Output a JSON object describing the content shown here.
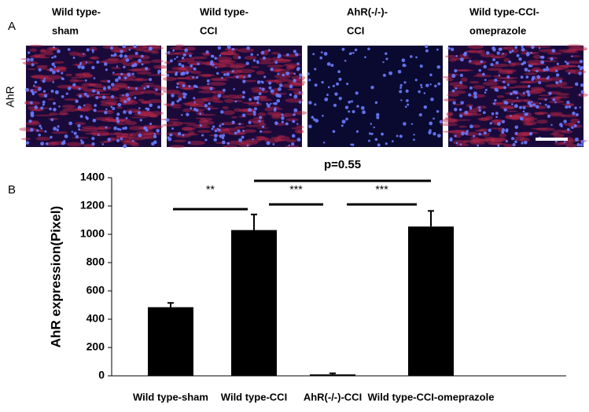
{
  "panel_a": {
    "label": "A",
    "row_label": "AhR",
    "column_labels": [
      [
        "Wild type-",
        "sham"
      ],
      [
        "Wild type-",
        "CCI"
      ],
      [
        "AhR(-/-)-",
        "CCI"
      ],
      [
        "Wild type-CCI-",
        "omeprazole"
      ]
    ]
  },
  "chart_data": {
    "type": "bar",
    "panel_label": "B",
    "y_label": "AhR expression(Pixel)",
    "categories": [
      "Wild type-sham",
      "Wild  type-CCI",
      "AhR(-/-)-CCI",
      "Wild type-CCI-omeprazole"
    ],
    "values": [
      485,
      1030,
      10,
      1055
    ],
    "errors": [
      30,
      110,
      8,
      110
    ],
    "color": "#000000",
    "ylim": [
      0,
      1400
    ],
    "yticks": [
      0,
      200,
      400,
      600,
      800,
      1000,
      1200,
      1400
    ],
    "annotations": [
      {
        "text": "**",
        "between": [
          0,
          1
        ]
      },
      {
        "text": "***",
        "between": [
          1,
          2
        ]
      },
      {
        "text": "***",
        "between": [
          2,
          3
        ]
      },
      {
        "text": "p=0.55",
        "between": [
          1,
          3
        ]
      }
    ]
  }
}
